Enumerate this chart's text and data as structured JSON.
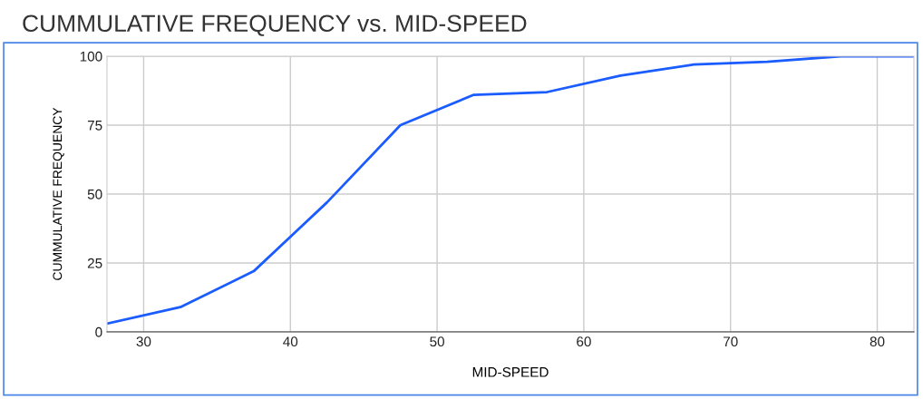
{
  "chart_data": {
    "type": "line",
    "title": "CUMMULATIVE FREQUENCY vs. MID-SPEED",
    "xlabel": "MID-SPEED",
    "ylabel": "CUMMULATIVE FREQUENCY",
    "x": [
      27.5,
      32.5,
      37.5,
      42.5,
      47.5,
      52.5,
      57.5,
      62.5,
      67.5,
      72.5,
      77.5,
      82.5
    ],
    "series": [
      {
        "color": "#1a5cff",
        "values": [
          3,
          9,
          22,
          47,
          75,
          86,
          87,
          93,
          97,
          98,
          100,
          100
        ]
      }
    ],
    "xlim": [
      27.5,
      82.5
    ],
    "xticks": [
      30,
      40,
      50,
      60,
      70,
      80
    ],
    "ylim": [
      0,
      100
    ],
    "yticks": [
      0,
      25,
      50,
      75,
      100
    ],
    "grid": true,
    "marker": "none",
    "line_style": "solid",
    "legend": false
  }
}
